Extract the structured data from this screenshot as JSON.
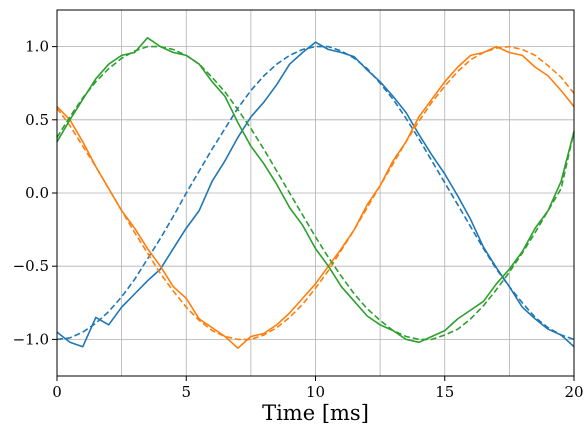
{
  "chart_data": {
    "type": "line",
    "xlabel": "Time [ms]",
    "ylabel": "",
    "xlim": [
      0,
      20
    ],
    "ylim": [
      -1.25,
      1.25
    ],
    "grid": true,
    "xticks": [
      0,
      5,
      10,
      15,
      20
    ],
    "xtick_labels": [
      "0",
      "5",
      "10",
      "15",
      "20"
    ],
    "xgrid": [
      0,
      2.5,
      5,
      7.5,
      10,
      12.5,
      15,
      17.5,
      20
    ],
    "yticks": [
      -1.0,
      -0.5,
      0.0,
      0.5,
      1.0
    ],
    "ytick_labels": [
      "−1.0",
      "−0.5",
      "0.0",
      "0.5",
      "1.0"
    ],
    "x": [
      0,
      0.5,
      1,
      1.5,
      2,
      2.5,
      3,
      3.5,
      4,
      4.5,
      5,
      5.5,
      6,
      6.5,
      7,
      7.5,
      8,
      8.5,
      9,
      9.5,
      10,
      10.5,
      11,
      11.5,
      12,
      12.5,
      13,
      13.5,
      14,
      14.5,
      15,
      15.5,
      16,
      16.5,
      17,
      17.5,
      18,
      18.5,
      19,
      19.5,
      20
    ],
    "series": [
      {
        "color": "#1f77b4",
        "style": "measured",
        "values": [
          -0.95,
          -1.02,
          -1.05,
          -0.85,
          -0.9,
          -0.78,
          -0.69,
          -0.6,
          -0.52,
          -0.38,
          -0.24,
          -0.12,
          0.08,
          0.22,
          0.38,
          0.52,
          0.62,
          0.74,
          0.88,
          0.96,
          1.03,
          0.98,
          0.96,
          0.93,
          0.84,
          0.76,
          0.66,
          0.55,
          0.4,
          0.26,
          0.13,
          -0.02,
          -0.18,
          -0.37,
          -0.51,
          -0.64,
          -0.78,
          -0.86,
          -0.93,
          -0.97,
          -1.05
        ]
      },
      {
        "color": "#1f77b4",
        "style": "fit",
        "values": [
          -1.0,
          -0.99,
          -0.95,
          -0.89,
          -0.81,
          -0.71,
          -0.59,
          -0.45,
          -0.31,
          -0.16,
          0.0,
          0.15,
          0.3,
          0.44,
          0.58,
          0.7,
          0.8,
          0.88,
          0.94,
          0.98,
          1.0,
          1.0,
          0.97,
          0.92,
          0.85,
          0.75,
          0.64,
          0.51,
          0.37,
          0.22,
          0.07,
          -0.08,
          -0.23,
          -0.38,
          -0.52,
          -0.64,
          -0.75,
          -0.85,
          -0.92,
          -0.97,
          -1.0
        ]
      },
      {
        "color": "#ff7f0e",
        "style": "measured",
        "values": [
          0.59,
          0.5,
          0.35,
          0.18,
          0.03,
          -0.12,
          -0.24,
          -0.38,
          -0.5,
          -0.64,
          -0.72,
          -0.86,
          -0.92,
          -0.98,
          -1.06,
          -0.98,
          -0.96,
          -0.9,
          -0.82,
          -0.72,
          -0.62,
          -0.5,
          -0.38,
          -0.25,
          -0.08,
          0.05,
          0.22,
          0.35,
          0.52,
          0.64,
          0.76,
          0.86,
          0.94,
          0.96,
          1.0,
          0.96,
          0.94,
          0.86,
          0.8,
          0.7,
          0.59
        ]
      },
      {
        "color": "#ff7f0e",
        "style": "fit",
        "values": [
          0.58,
          0.46,
          0.32,
          0.18,
          0.03,
          -0.12,
          -0.27,
          -0.41,
          -0.55,
          -0.67,
          -0.78,
          -0.87,
          -0.94,
          -0.98,
          -1.0,
          -1.0,
          -0.97,
          -0.92,
          -0.85,
          -0.76,
          -0.65,
          -0.53,
          -0.39,
          -0.25,
          -0.1,
          0.05,
          0.2,
          0.35,
          0.49,
          0.62,
          0.73,
          0.83,
          0.91,
          0.96,
          0.99,
          1.0,
          0.98,
          0.94,
          0.87,
          0.79,
          0.68
        ]
      },
      {
        "color": "#2ca02c",
        "style": "measured",
        "values": [
          0.35,
          0.5,
          0.64,
          0.78,
          0.88,
          0.94,
          0.96,
          1.06,
          1.0,
          0.96,
          0.94,
          0.88,
          0.76,
          0.66,
          0.48,
          0.32,
          0.2,
          0.06,
          -0.1,
          -0.22,
          -0.38,
          -0.5,
          -0.64,
          -0.74,
          -0.84,
          -0.9,
          -0.94,
          -1.0,
          -1.02,
          -0.98,
          -0.94,
          -0.86,
          -0.8,
          -0.74,
          -0.62,
          -0.52,
          -0.4,
          -0.24,
          -0.12,
          0.08,
          0.42
        ]
      },
      {
        "color": "#2ca02c",
        "style": "fit",
        "values": [
          0.38,
          0.52,
          0.65,
          0.76,
          0.85,
          0.92,
          0.97,
          1.0,
          1.0,
          0.98,
          0.94,
          0.88,
          0.79,
          0.69,
          0.57,
          0.44,
          0.3,
          0.15,
          0.0,
          -0.15,
          -0.3,
          -0.44,
          -0.57,
          -0.69,
          -0.79,
          -0.87,
          -0.94,
          -0.98,
          -1.0,
          -1.0,
          -0.97,
          -0.93,
          -0.86,
          -0.77,
          -0.66,
          -0.54,
          -0.41,
          -0.27,
          -0.12,
          0.03,
          0.42
        ]
      }
    ]
  }
}
